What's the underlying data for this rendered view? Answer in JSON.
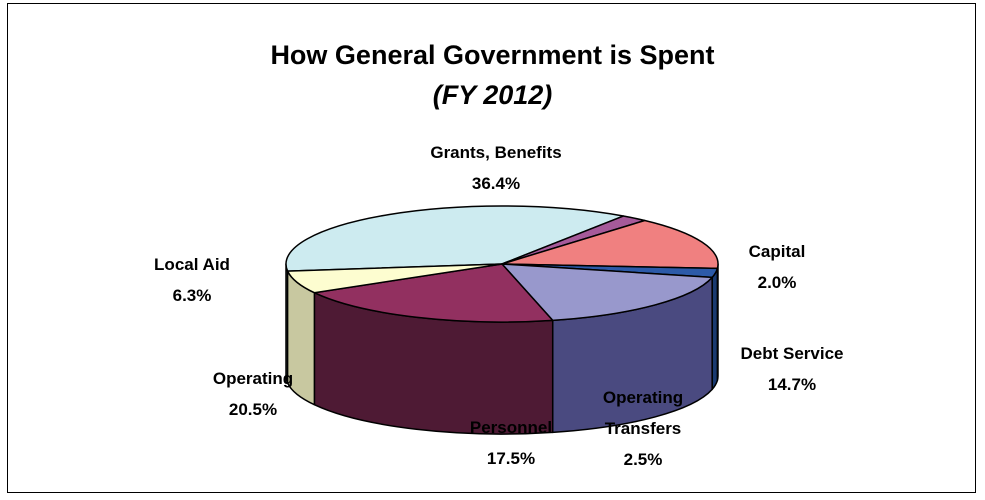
{
  "chart_data": {
    "type": "pie",
    "title": "How General Government is Spent",
    "subtitle": "(FY 2012)",
    "slices": [
      {
        "label": [
          "Grants, Benefits"
        ],
        "value_label": "36.4%",
        "value": 36.4,
        "top": "#cdebf0",
        "side": "#9ab7bb"
      },
      {
        "label": [
          "Capital"
        ],
        "value_label": "2.0%",
        "value": 2.0,
        "top": "#a65a9a",
        "side": "#6a2f60"
      },
      {
        "label": [
          "Debt Service"
        ],
        "value_label": "14.7%",
        "value": 14.7,
        "top": "#f08080",
        "side": "#7b4040"
      },
      {
        "label": [
          "Operating",
          "Transfers"
        ],
        "value_label": "2.5%",
        "value": 2.5,
        "top": "#2c5aa8",
        "side": "#1a3a70"
      },
      {
        "label": [
          "Personnel"
        ],
        "value_label": "17.5%",
        "value": 17.5,
        "top": "#9898cc",
        "side": "#4a4a80"
      },
      {
        "label": [
          "Operating"
        ],
        "value_label": "20.5%",
        "value": 20.5,
        "top": "#923060",
        "side": "#4e1a34"
      },
      {
        "label": [
          "Local Aid"
        ],
        "value_label": "6.3%",
        "value": 6.3,
        "top": "#fdfdd0",
        "side": "#c8c8a0"
      }
    ],
    "legend": "none"
  }
}
